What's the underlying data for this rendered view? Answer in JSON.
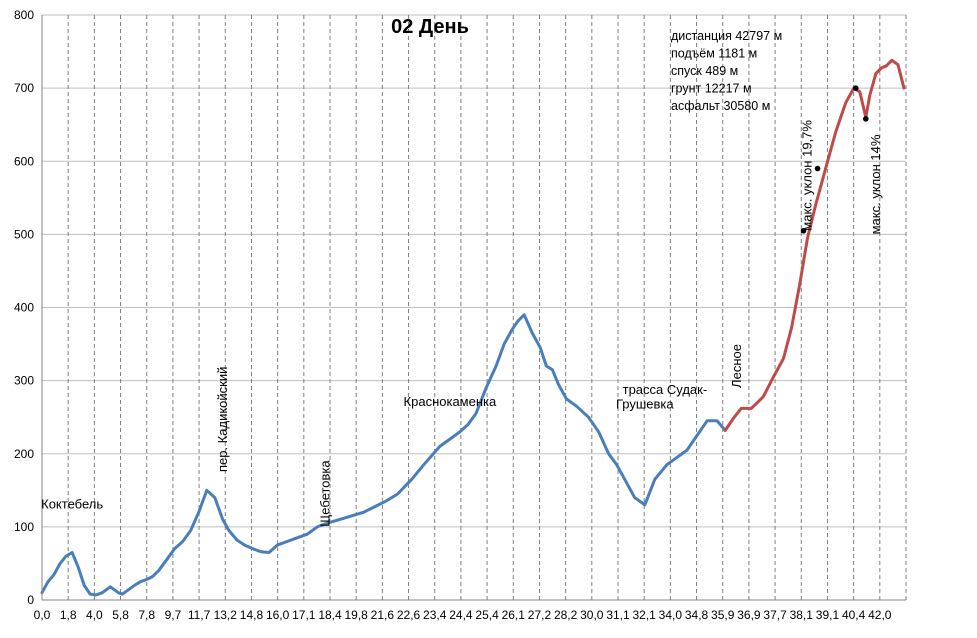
{
  "chart_data": {
    "type": "line",
    "title": "02  День",
    "xlabel": "",
    "ylabel": "",
    "xlim": [
      0,
      43.0
    ],
    "ylim": [
      0,
      800
    ],
    "yticks": [
      "0",
      "100",
      "200",
      "300",
      "400",
      "500",
      "600",
      "700",
      "800"
    ],
    "xtick_labels": [
      "0,0",
      "1,8",
      "4,0",
      "5,8",
      "7,8",
      "9,7",
      "11,7",
      "13,2",
      "14,8",
      "16,0",
      "17,1",
      "18,4",
      "19,8",
      "21,6",
      "22,6",
      "23,4",
      "24,4",
      "25,4",
      "26,1",
      "27,2",
      "28,2",
      "30,0",
      "31,1",
      "32,1",
      "34,0",
      "34,8",
      "35,9",
      "36,9",
      "37,7",
      "38,1",
      "39,1",
      "40,4",
      "42,0"
    ],
    "grid": {
      "horizontal": true,
      "vertical": "dashed"
    },
    "colors": {
      "asphalt": "#4a7ebb",
      "ground": "#be4b48",
      "grid": "#bfbfbf"
    },
    "series": [
      {
        "surface": "asphalt",
        "x": [
          0.0,
          0.3,
          0.6,
          0.9,
          1.2,
          1.5,
          1.8,
          2.1,
          2.4,
          2.7,
          3.0,
          3.4,
          3.8,
          4.0,
          4.3,
          4.6,
          4.9,
          5.2,
          5.5,
          5.8,
          6.2,
          6.6,
          7.0,
          7.4,
          7.8,
          8.2,
          8.6,
          9.0,
          9.3,
          9.7,
          10.1,
          10.5,
          10.9,
          11.3,
          11.7,
          12.2,
          12.7,
          13.2,
          13.7,
          14.2,
          14.8,
          15.4,
          16.0,
          16.6,
          17.1,
          17.7,
          18.4,
          19.0,
          19.8,
          20.3,
          20.8,
          21.2,
          21.6,
          22.1,
          22.6,
          23.0,
          23.4,
          23.7,
          24.0,
          24.4,
          24.8,
          25.1,
          25.4,
          25.7,
          26.1,
          26.6,
          27.2,
          27.7,
          28.2,
          28.6,
          29.0,
          29.5,
          30.0,
          30.5,
          31.1,
          31.6,
          32.1,
          32.6,
          33.1,
          33.6,
          34.0
        ],
        "y": [
          10,
          25,
          35,
          50,
          60,
          65,
          45,
          20,
          8,
          7,
          10,
          18,
          10,
          8,
          14,
          20,
          25,
          28,
          32,
          40,
          55,
          70,
          80,
          95,
          120,
          150,
          140,
          110,
          95,
          82,
          75,
          70,
          66,
          65,
          75,
          80,
          85,
          90,
          100,
          105,
          110,
          115,
          120,
          128,
          135,
          145,
          165,
          185,
          210,
          220,
          230,
          240,
          255,
          290,
          320,
          350,
          370,
          382,
          390,
          365,
          345,
          320,
          315,
          295,
          275,
          265,
          250,
          230,
          200,
          185,
          165,
          140,
          130,
          165,
          185,
          195,
          205,
          225,
          245,
          245,
          232
        ],
        "lw": 3
      },
      {
        "surface": "ground",
        "x": [
          34.0,
          34.4,
          34.8,
          35.3,
          35.9,
          36.4,
          36.9,
          37.3,
          37.7,
          38.1,
          38.5,
          39.1,
          39.5,
          40.0,
          40.4,
          40.7,
          41.0,
          41.2,
          41.5,
          41.8,
          42.0,
          42.3,
          42.6,
          42.9
        ],
        "y": [
          232,
          248,
          262,
          262,
          278,
          305,
          330,
          372,
          430,
          495,
          540,
          600,
          640,
          680,
          700,
          695,
          660,
          690,
          720,
          728,
          730,
          738,
          732,
          700
        ],
        "lw": 3
      }
    ],
    "annotations": [
      {
        "text": "Коктебель",
        "x": 1.5,
        "y": 125,
        "rotation": 0
      },
      {
        "text": "пер. Кадикойский",
        "x": 9.2,
        "y": 175,
        "rotation": -90
      },
      {
        "text": "Щебетовка",
        "x": 14.3,
        "y": 100,
        "rotation": -90
      },
      {
        "text": "Краснокаменка",
        "x": 20.3,
        "y": 265,
        "rotation": 0
      },
      {
        "text": "трасса Судак-",
        "x": 31.0,
        "y": 282,
        "rotation": 0
      },
      {
        "text": "Грушевка",
        "x": 30.0,
        "y": 262,
        "rotation": 0
      },
      {
        "text": "Лесное",
        "x": 34.8,
        "y": 290,
        "rotation": -90
      },
      {
        "text": "макс. уклон 19,7%",
        "x": 38.3,
        "y": 505,
        "rotation": -90
      },
      {
        "text": "макс. уклон 14%",
        "x": 41.7,
        "y": 500,
        "rotation": -90
      }
    ],
    "markers": [
      {
        "x": 37.9,
        "y": 505
      },
      {
        "x": 38.6,
        "y": 590
      },
      {
        "x": 40.5,
        "y": 700
      },
      {
        "x": 41.0,
        "y": 658
      }
    ],
    "info_lines": [
      "дистанция 42797 м",
      "подъём 1181 м",
      "спуск 489 м",
      "грунт 12217 м",
      "асфальт 30580 м"
    ]
  }
}
